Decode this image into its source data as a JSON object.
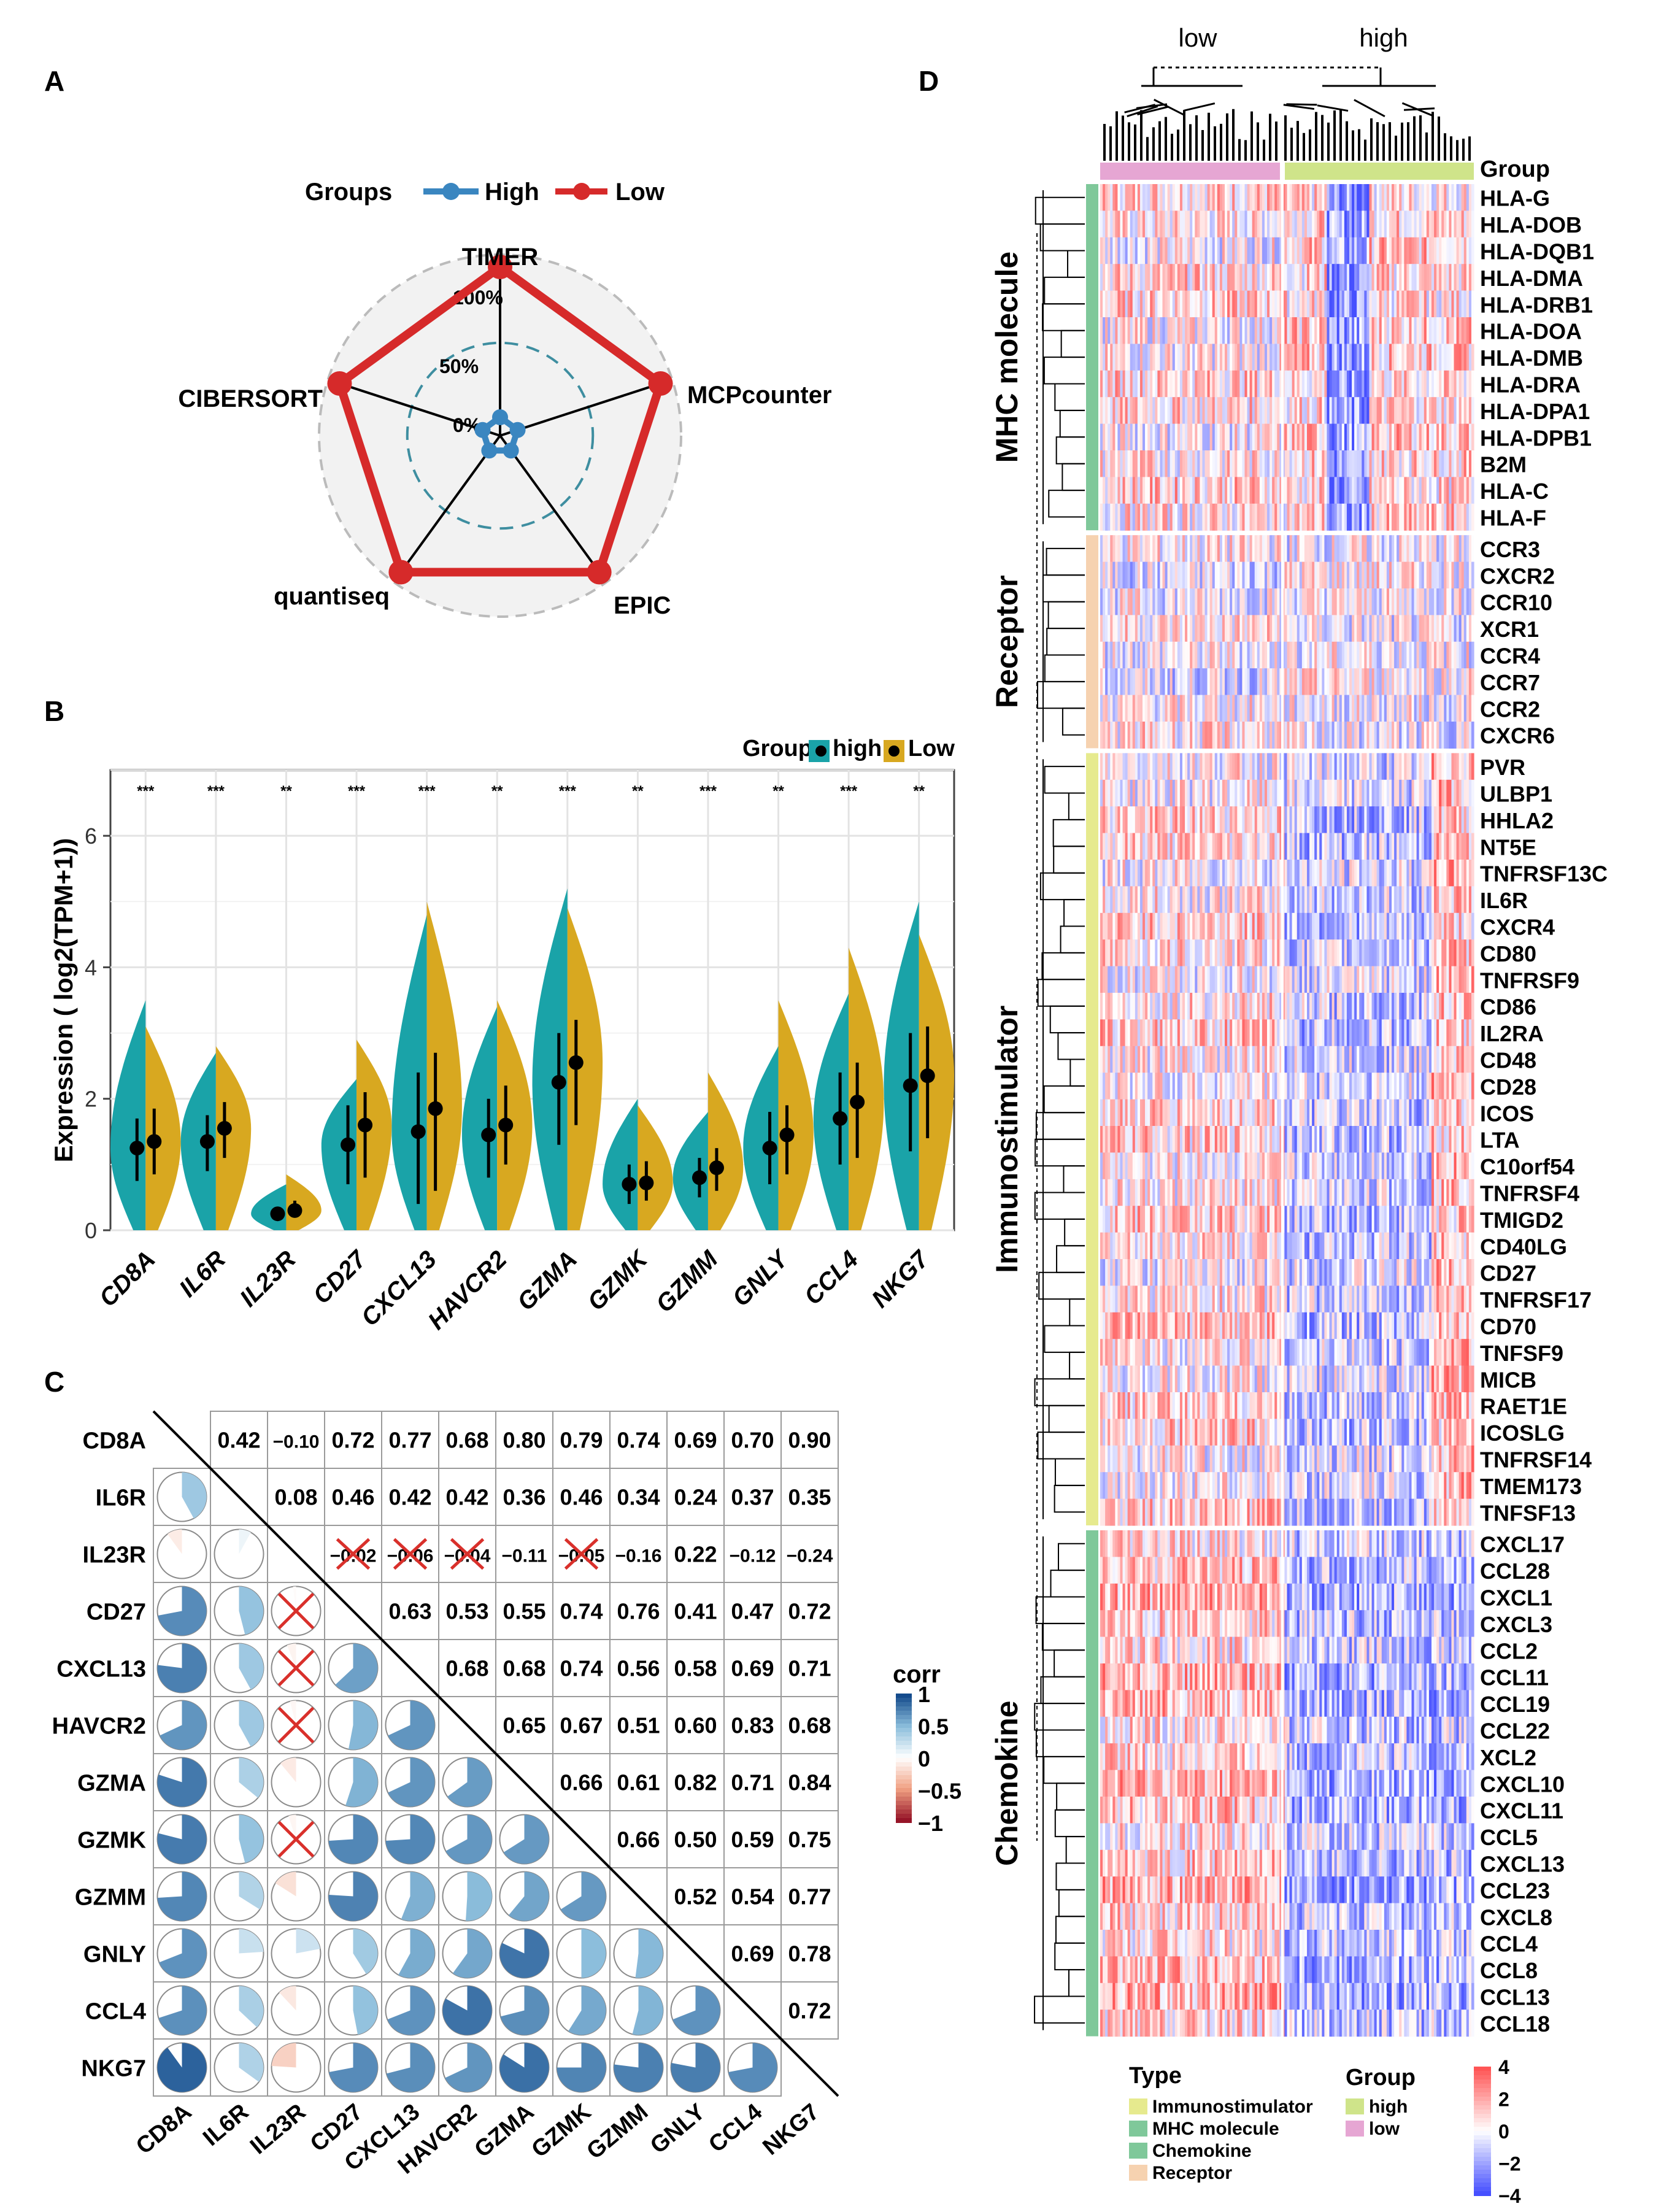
{
  "panels": {
    "a": "A",
    "b": "B",
    "c": "C",
    "d": "D"
  },
  "colors": {
    "high_blue": "#3a86c0",
    "low_red": "#d62a2a",
    "violin_high": "#1aa3a8",
    "violin_low": "#d8a820",
    "type_immuno": "#e6ea8e",
    "type_mhc": "#7fc89a",
    "type_chemokine": "#7fc89a",
    "type_receptor": "#f6d2b0",
    "group_high": "#cfe48a",
    "group_low": "#e6a6d3"
  },
  "chart_data": [
    {
      "type": "radar",
      "panel": "A",
      "legend_title": "Groups",
      "legend": [
        "High",
        "Low"
      ],
      "axes": [
        "TIMER",
        "MCPcounter",
        "EPIC",
        "quantiseq",
        "CIBERSORT"
      ],
      "rings": [
        "100%",
        "50%",
        "0%"
      ],
      "series": [
        {
          "name": "High",
          "values": [
            0.03,
            0.03,
            0.03,
            0.03,
            0.03
          ]
        },
        {
          "name": "Low",
          "values": [
            1.0,
            1.0,
            1.0,
            1.0,
            1.0
          ]
        }
      ]
    },
    {
      "type": "violin",
      "panel": "B",
      "legend_title": "Group",
      "legend": [
        "high",
        "Low"
      ],
      "ylabel": "Expression ( log2(TPM+1))",
      "ylim": [
        0,
        7
      ],
      "yticks": [
        "0",
        "2",
        "4",
        "6"
      ],
      "categories": [
        "CD8A",
        "IL6R",
        "IL23R",
        "CD27",
        "CXCL13",
        "HAVCR2",
        "GZMA",
        "GZMK",
        "GZMM",
        "GNLY",
        "CCL4",
        "NKG7"
      ],
      "significance": [
        "***",
        "***",
        "**",
        "***",
        "***",
        "**",
        "***",
        "**",
        "***",
        "**",
        "***",
        "**"
      ],
      "series": [
        {
          "name": "high",
          "median": [
            1.25,
            1.35,
            0.25,
            1.3,
            1.5,
            1.45,
            2.25,
            0.7,
            0.8,
            1.25,
            1.7,
            2.2
          ],
          "q1": [
            0.75,
            0.9,
            0.15,
            0.7,
            0.4,
            0.8,
            1.3,
            0.4,
            0.5,
            0.7,
            1.0,
            1.2
          ],
          "q3": [
            1.7,
            1.75,
            0.35,
            1.9,
            2.4,
            2.0,
            3.0,
            1.0,
            1.1,
            1.8,
            2.4,
            3.0
          ],
          "max": [
            3.5,
            2.7,
            0.7,
            2.3,
            4.8,
            3.4,
            5.2,
            2.0,
            1.8,
            2.8,
            3.6,
            5.0
          ]
        },
        {
          "name": "Low",
          "median": [
            1.35,
            1.55,
            0.3,
            1.6,
            1.85,
            1.6,
            2.55,
            0.72,
            0.95,
            1.45,
            1.95,
            2.35
          ],
          "q1": [
            0.85,
            1.1,
            0.2,
            0.8,
            0.6,
            1.0,
            1.6,
            0.45,
            0.6,
            0.85,
            1.1,
            1.4
          ],
          "q3": [
            1.85,
            1.95,
            0.45,
            2.1,
            2.7,
            2.2,
            3.2,
            1.05,
            1.25,
            1.9,
            2.55,
            3.1
          ],
          "max": [
            3.1,
            2.8,
            0.85,
            2.9,
            5.0,
            3.5,
            4.9,
            1.9,
            2.4,
            3.5,
            4.3,
            4.5
          ]
        }
      ]
    },
    {
      "type": "heatmap",
      "panel": "C",
      "subtype": "correlation",
      "genes": [
        "CD8A",
        "IL6R",
        "IL23R",
        "CD27",
        "CXCL13",
        "HAVCR2",
        "GZMA",
        "GZMK",
        "GZMM",
        "GNLY",
        "CCL4",
        "NKG7"
      ],
      "values": [
        [
          1,
          0.42,
          -0.1,
          0.72,
          0.77,
          0.68,
          0.8,
          0.79,
          0.74,
          0.69,
          0.7,
          0.9
        ],
        [
          0.42,
          1,
          0.08,
          0.46,
          0.42,
          0.42,
          0.36,
          0.46,
          0.34,
          0.24,
          0.37,
          0.35
        ],
        [
          -0.1,
          0.08,
          1,
          -0.02,
          -0.06,
          -0.04,
          -0.11,
          -0.05,
          -0.16,
          0.22,
          -0.12,
          -0.24
        ],
        [
          0.72,
          0.46,
          -0.02,
          1,
          0.63,
          0.53,
          0.55,
          0.74,
          0.76,
          0.41,
          0.47,
          0.72
        ],
        [
          0.77,
          0.42,
          -0.06,
          0.63,
          1,
          0.68,
          0.68,
          0.74,
          0.56,
          0.58,
          0.69,
          0.71
        ],
        [
          0.68,
          0.42,
          -0.04,
          0.53,
          0.68,
          1,
          0.65,
          0.67,
          0.51,
          0.6,
          0.83,
          0.68
        ],
        [
          0.8,
          0.36,
          -0.11,
          0.55,
          0.68,
          0.65,
          1,
          0.66,
          0.61,
          0.82,
          0.71,
          0.84
        ],
        [
          0.79,
          0.46,
          -0.05,
          0.74,
          0.74,
          0.67,
          0.66,
          1,
          0.66,
          0.5,
          0.59,
          0.75
        ],
        [
          0.74,
          0.34,
          -0.16,
          0.76,
          0.56,
          0.51,
          0.61,
          0.66,
          1,
          0.52,
          0.54,
          0.77
        ],
        [
          0.69,
          0.24,
          0.22,
          0.41,
          0.58,
          0.6,
          0.82,
          0.5,
          0.52,
          1,
          0.69,
          0.78
        ],
        [
          0.7,
          0.37,
          -0.12,
          0.47,
          0.69,
          0.83,
          0.71,
          0.59,
          0.54,
          0.69,
          1,
          0.72
        ],
        [
          0.9,
          0.35,
          -0.24,
          0.72,
          0.71,
          0.68,
          0.84,
          0.75,
          0.77,
          0.78,
          0.72,
          1
        ]
      ],
      "labels": [
        [
          "",
          "0.42",
          "−0.10",
          "0.72",
          "0.77",
          "0.68",
          "0.80",
          "0.79",
          "0.74",
          "0.69",
          "0.70",
          "0.90"
        ],
        [
          "",
          "",
          "0.08",
          "0.46",
          "0.42",
          "0.42",
          "0.36",
          "0.46",
          "0.34",
          "0.24",
          "0.37",
          "0.35"
        ],
        [
          "",
          "",
          "",
          "−0.02",
          "−0.06",
          "−0.04",
          "−0.11",
          "−0.05",
          "−0.16",
          "0.22",
          "−0.12",
          "−0.24"
        ],
        [
          "",
          "",
          "",
          "",
          "0.63",
          "0.53",
          "0.55",
          "0.74",
          "0.76",
          "0.41",
          "0.47",
          "0.72"
        ],
        [
          "",
          "",
          "",
          "",
          "",
          "0.68",
          "0.68",
          "0.74",
          "0.56",
          "0.58",
          "0.69",
          "0.71"
        ],
        [
          "",
          "",
          "",
          "",
          "",
          "",
          "0.65",
          "0.67",
          "0.51",
          "0.60",
          "0.83",
          "0.68"
        ],
        [
          "",
          "",
          "",
          "",
          "",
          "",
          "",
          "0.66",
          "0.61",
          "0.82",
          "0.71",
          "0.84"
        ],
        [
          "",
          "",
          "",
          "",
          "",
          "",
          "",
          "",
          "0.66",
          "0.50",
          "0.59",
          "0.75"
        ],
        [
          "",
          "",
          "",
          "",
          "",
          "",
          "",
          "",
          "",
          "0.52",
          "0.54",
          "0.77"
        ],
        [
          "",
          "",
          "",
          "",
          "",
          "",
          "",
          "",
          "",
          "",
          "0.69",
          "0.78"
        ],
        [
          "",
          "",
          "",
          "",
          "",
          "",
          "",
          "",
          "",
          "",
          "",
          "0.72"
        ],
        [
          "",
          "",
          "",
          "",
          "",
          "",
          "",
          "",
          "",
          "",
          "",
          ""
        ]
      ],
      "nonsignificant": [
        [
          2,
          3
        ],
        [
          2,
          4
        ],
        [
          2,
          5
        ],
        [
          2,
          7
        ]
      ],
      "legend_title": "corr",
      "legend_ticks": [
        "1",
        "0.5",
        "0",
        "−0.5",
        "−1"
      ]
    },
    {
      "type": "heatmap",
      "panel": "D",
      "subtype": "expression",
      "column_groups": [
        "low",
        "high"
      ],
      "group_row_label": "Group",
      "categories": [
        {
          "name": "MHC molecule",
          "type": "MHC molecule",
          "genes": [
            "HLA-G",
            "HLA-DOB",
            "HLA-DQB1",
            "HLA-DMA",
            "HLA-DRB1",
            "HLA-DOA",
            "HLA-DMB",
            "HLA-DRA",
            "HLA-DPA1",
            "HLA-DPB1",
            "B2M",
            "HLA-C",
            "HLA-F"
          ]
        },
        {
          "name": "Receptor",
          "type": "Receptor",
          "genes": [
            "CCR3",
            "CXCR2",
            "CCR10",
            "XCR1",
            "CCR4",
            "CCR7",
            "CCR2",
            "CXCR6"
          ]
        },
        {
          "name": "Immunostimulator",
          "type": "Immunostimulator",
          "genes": [
            "PVR",
            "ULBP1",
            "HHLA2",
            "NT5E",
            "TNFRSF13C",
            "IL6R",
            "CXCR4",
            "CD80",
            "TNFRSF9",
            "CD86",
            "IL2RA",
            "CD48",
            "CD28",
            "ICOS",
            "LTA",
            "C10orf54",
            "TNFRSF4",
            "TMIGD2",
            "CD40LG",
            "CD27",
            "TNFRSF17",
            "CD70",
            "TNFSF9",
            "MICB",
            "RAET1E",
            "ICOSLG",
            "TNFRSF14",
            "TMEM173",
            "TNFSF13"
          ]
        },
        {
          "name": "Chemokine",
          "type": "Chemokine",
          "genes": [
            "CXCL17",
            "CCL28",
            "CXCL1",
            "CXCL3",
            "CCL2",
            "CCL11",
            "CCL19",
            "CCL22",
            "XCL2",
            "CXCL10",
            "CXCL11",
            "CCL5",
            "CXCL13",
            "CCL23",
            "CXCL8",
            "CCL4",
            "CCL8",
            "CCL13",
            "CCL18"
          ]
        }
      ],
      "type_legend_title": "Type",
      "type_legend": [
        "Immunostimulator",
        "MHC molecule",
        "Chemokine",
        "Receptor"
      ],
      "group_legend_title": "Group",
      "group_legend": [
        "high",
        "low"
      ],
      "scale_ticks": [
        "4",
        "2",
        "0",
        "−2",
        "−4"
      ]
    }
  ]
}
